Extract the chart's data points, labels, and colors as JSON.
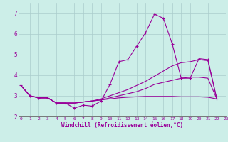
{
  "background_color": "#cceee8",
  "grid_color": "#aacccc",
  "line_color": "#990099",
  "spine_color": "#666666",
  "xlim": [
    -0.3,
    23
  ],
  "ylim": [
    2.0,
    7.5
  ],
  "yticks": [
    2,
    3,
    4,
    5,
    6,
    7
  ],
  "xticks": [
    0,
    1,
    2,
    3,
    4,
    5,
    6,
    7,
    8,
    9,
    10,
    11,
    12,
    13,
    14,
    15,
    16,
    17,
    18,
    19,
    20,
    21,
    22,
    23
  ],
  "xlabel": "Windchill (Refroidissement éolien,°C)",
  "curves": [
    [
      3.5,
      3.0,
      2.9,
      2.9,
      2.65,
      2.65,
      2.4,
      2.55,
      2.5,
      2.75,
      3.55,
      4.65,
      4.75,
      5.4,
      6.05,
      6.95,
      6.75,
      5.5,
      3.85,
      3.85,
      4.8,
      4.75,
      2.85
    ],
    [
      3.5,
      3.0,
      2.9,
      2.9,
      2.65,
      2.65,
      2.65,
      2.7,
      2.75,
      2.85,
      3.0,
      3.15,
      3.3,
      3.5,
      3.7,
      3.95,
      4.2,
      4.45,
      4.6,
      4.65,
      4.75,
      4.7,
      2.85
    ],
    [
      3.5,
      3.0,
      2.9,
      2.9,
      2.65,
      2.65,
      2.65,
      2.7,
      2.75,
      2.8,
      2.9,
      3.0,
      3.1,
      3.2,
      3.35,
      3.55,
      3.65,
      3.75,
      3.85,
      3.9,
      3.9,
      3.85,
      2.85
    ],
    [
      3.5,
      3.0,
      2.9,
      2.9,
      2.65,
      2.65,
      2.65,
      2.7,
      2.75,
      2.8,
      2.85,
      2.9,
      2.93,
      2.95,
      2.97,
      2.97,
      2.97,
      2.97,
      2.95,
      2.95,
      2.95,
      2.93,
      2.85
    ]
  ],
  "marker_curve": 0
}
